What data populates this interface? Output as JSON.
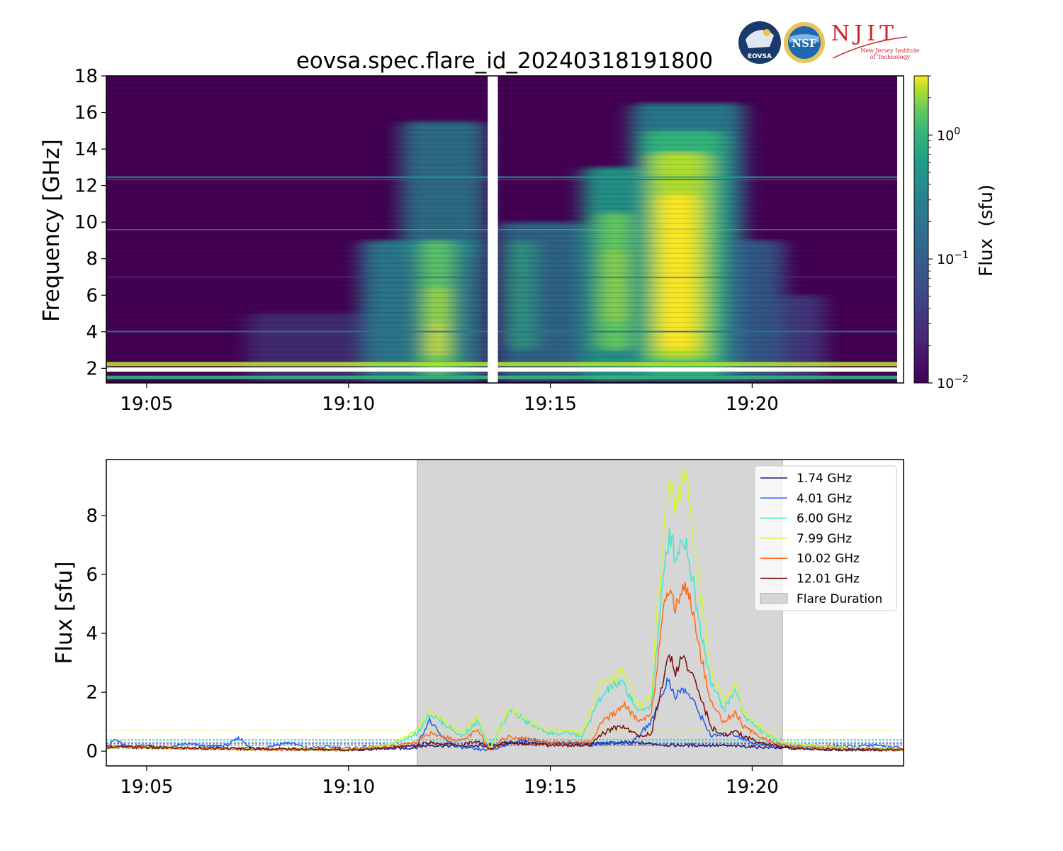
{
  "title": "eovsa.spec.flare_id_20240318191800",
  "logos": {
    "eovsa": "EOVSA",
    "nsf": "NSF",
    "njit": "NJIT",
    "njit_sub1": "New Jersey Institute",
    "njit_sub2": "of Technology"
  },
  "colors": {
    "flare_shade": "#d6d6d6",
    "viridis_low": "#440154",
    "viridis_high": "#fde725"
  },
  "chart_data": [
    {
      "type": "heatmap",
      "title": "eovsa.spec.flare_id_20240318191800",
      "ylabel": "Frequency [GHz]",
      "xlabel": "",
      "x_ticks": [
        "19:05",
        "19:10",
        "19:15",
        "19:20"
      ],
      "x_tick_minutes": [
        5,
        10,
        15,
        20
      ],
      "xlim_minutes_after_19_00": [
        4.0,
        23.75
      ],
      "y_ticks": [
        2,
        4,
        6,
        8,
        10,
        12,
        14,
        16,
        18
      ],
      "ylim": [
        1.2,
        18
      ],
      "colorbar": {
        "label": "Flux  (sfu)",
        "scale": "log",
        "range": [
          0.01,
          3.0
        ],
        "tick_values": [
          0.01,
          0.1,
          1
        ],
        "tick_labels": [
          {
            "base": "10",
            "exp": "−2"
          },
          {
            "base": "10",
            "exp": "−1"
          },
          {
            "base": "10",
            "exp": "0"
          }
        ]
      },
      "data_gap_minutes": [
        13.45,
        13.7
      ]
    },
    {
      "type": "line",
      "ylabel": "Flux [sfu]",
      "xlabel": "",
      "x_ticks": [
        "19:05",
        "19:10",
        "19:15",
        "19:20"
      ],
      "x_tick_minutes": [
        5,
        10,
        15,
        20
      ],
      "xlim_minutes_after_19_00": [
        4.0,
        23.75
      ],
      "y_ticks": [
        0,
        2,
        4,
        6,
        8
      ],
      "ylim": [
        -0.5,
        9.9
      ],
      "flare_duration_minutes": [
        11.7,
        20.75
      ],
      "legend_position": "upper right",
      "legend_shade_label": "Flare Duration",
      "series": [
        {
          "name": "1.74 GHz",
          "color": "#1b1b7a",
          "baseline": 0.25,
          "points": [
            [
              4,
              0.15
            ],
            [
              6,
              0.1
            ],
            [
              8,
              0.08
            ],
            [
              10,
              0.05
            ],
            [
              11.5,
              0.1
            ],
            [
              12,
              0.2
            ],
            [
              13,
              0.15
            ],
            [
              13.5,
              0.2
            ],
            [
              14,
              0.3
            ],
            [
              15,
              0.25
            ],
            [
              16,
              0.25
            ],
            [
              17,
              0.3
            ],
            [
              18,
              0.2
            ],
            [
              19,
              0.2
            ],
            [
              20,
              0.15
            ],
            [
              21,
              0.1
            ],
            [
              22,
              0.05
            ],
            [
              23.75,
              0.05
            ]
          ]
        },
        {
          "name": "4.01 GHz",
          "color": "#1f5be6",
          "baseline": 0.3,
          "points": [
            [
              4,
              0.1
            ],
            [
              4.2,
              0.4
            ],
            [
              4.5,
              0.15
            ],
            [
              5,
              0.2
            ],
            [
              5.5,
              0.1
            ],
            [
              6,
              0.25
            ],
            [
              6.5,
              0.15
            ],
            [
              7,
              0.2
            ],
            [
              7.3,
              0.45
            ],
            [
              7.6,
              0.1
            ],
            [
              8,
              0.15
            ],
            [
              8.5,
              0.3
            ],
            [
              9,
              0.1
            ],
            [
              9.5,
              0.15
            ],
            [
              10,
              0.1
            ],
            [
              10.5,
              0.15
            ],
            [
              11,
              0.1
            ],
            [
              11.7,
              0.2
            ],
            [
              12,
              1.05
            ],
            [
              12.3,
              0.5
            ],
            [
              12.7,
              0.15
            ],
            [
              13.2,
              0.05
            ],
            [
              13.5,
              0.05
            ],
            [
              13.7,
              0.1
            ],
            [
              14,
              0.3
            ],
            [
              14.5,
              0.4
            ],
            [
              15,
              0.25
            ],
            [
              15.5,
              0.3
            ],
            [
              16,
              0.2
            ],
            [
              16.5,
              0.3
            ],
            [
              17,
              0.25
            ],
            [
              17.5,
              1.0
            ],
            [
              17.9,
              2.4
            ],
            [
              18.1,
              1.9
            ],
            [
              18.3,
              2.1
            ],
            [
              18.5,
              1.8
            ],
            [
              18.8,
              1.0
            ],
            [
              19,
              0.5
            ],
            [
              19.5,
              0.6
            ],
            [
              20,
              0.3
            ],
            [
              20.5,
              0.15
            ],
            [
              21,
              0.2
            ],
            [
              21.5,
              0.1
            ],
            [
              22,
              0.2
            ],
            [
              22.5,
              0.15
            ],
            [
              23,
              0.2
            ],
            [
              23.75,
              0.1
            ]
          ]
        },
        {
          "name": "6.00 GHz",
          "color": "#40e8c8",
          "baseline": 0.35,
          "points": [
            [
              4,
              0.15
            ],
            [
              6,
              0.1
            ],
            [
              8,
              0.05
            ],
            [
              10,
              0.05
            ],
            [
              11,
              0.2
            ],
            [
              11.7,
              0.6
            ],
            [
              12,
              1.3
            ],
            [
              12.3,
              1.0
            ],
            [
              12.8,
              0.5
            ],
            [
              13.2,
              1.0
            ],
            [
              13.5,
              0.05
            ],
            [
              13.8,
              0.9
            ],
            [
              14,
              1.4
            ],
            [
              14.4,
              1.0
            ],
            [
              15,
              0.6
            ],
            [
              15.5,
              0.6
            ],
            [
              15.8,
              0.5
            ],
            [
              16.2,
              1.7
            ],
            [
              16.5,
              2.2
            ],
            [
              16.8,
              2.3
            ],
            [
              17.2,
              1.3
            ],
            [
              17.5,
              1.6
            ],
            [
              17.8,
              5.8
            ],
            [
              17.95,
              7.5
            ],
            [
              18.1,
              6.6
            ],
            [
              18.3,
              7.3
            ],
            [
              18.45,
              6.5
            ],
            [
              18.7,
              4.3
            ],
            [
              19,
              2.3
            ],
            [
              19.3,
              1.4
            ],
            [
              19.6,
              2.1
            ],
            [
              19.8,
              1.2
            ],
            [
              20.2,
              0.7
            ],
            [
              20.7,
              0.3
            ],
            [
              21,
              0.2
            ],
            [
              22,
              0.15
            ],
            [
              23,
              0.1
            ],
            [
              23.75,
              0.05
            ]
          ]
        },
        {
          "name": "7.99 GHz",
          "color": "#d2f53c",
          "baseline": 0.7,
          "points": [
            [
              4,
              0.15
            ],
            [
              6,
              0.1
            ],
            [
              8,
              0.1
            ],
            [
              10,
              0.05
            ],
            [
              11,
              0.2
            ],
            [
              11.7,
              0.7
            ],
            [
              12,
              1.4
            ],
            [
              12.3,
              1.1
            ],
            [
              12.8,
              0.6
            ],
            [
              13.2,
              1.2
            ],
            [
              13.5,
              0.05
            ],
            [
              13.8,
              0.9
            ],
            [
              14,
              1.5
            ],
            [
              14.4,
              1.1
            ],
            [
              15,
              0.7
            ],
            [
              15.5,
              0.7
            ],
            [
              15.8,
              0.6
            ],
            [
              16.2,
              2.2
            ],
            [
              16.5,
              2.4
            ],
            [
              16.8,
              2.7
            ],
            [
              17.2,
              1.5
            ],
            [
              17.5,
              1.9
            ],
            [
              17.8,
              7.4
            ],
            [
              17.95,
              9.4
            ],
            [
              18.1,
              8.4
            ],
            [
              18.3,
              9.3
            ],
            [
              18.45,
              8.7
            ],
            [
              18.7,
              5.5
            ],
            [
              19,
              2.7
            ],
            [
              19.3,
              1.7
            ],
            [
              19.6,
              2.3
            ],
            [
              19.8,
              1.3
            ],
            [
              20.2,
              0.8
            ],
            [
              20.7,
              0.3
            ],
            [
              21,
              0.25
            ],
            [
              22,
              0.15
            ],
            [
              23,
              0.1
            ],
            [
              23.75,
              0.05
            ]
          ]
        },
        {
          "name": "10.02 GHz",
          "color": "#ff6a14",
          "baseline": 0.4,
          "points": [
            [
              4,
              0.15
            ],
            [
              6,
              0.1
            ],
            [
              8,
              0.05
            ],
            [
              10,
              0.05
            ],
            [
              11,
              0.15
            ],
            [
              11.7,
              0.3
            ],
            [
              12,
              0.6
            ],
            [
              12.3,
              0.5
            ],
            [
              12.8,
              0.35
            ],
            [
              13.2,
              0.7
            ],
            [
              13.5,
              0.05
            ],
            [
              13.8,
              0.4
            ],
            [
              14,
              0.5
            ],
            [
              14.5,
              0.4
            ],
            [
              15,
              0.3
            ],
            [
              15.5,
              0.3
            ],
            [
              16,
              0.3
            ],
            [
              16.3,
              1.0
            ],
            [
              16.6,
              1.3
            ],
            [
              16.8,
              1.6
            ],
            [
              17.2,
              1.0
            ],
            [
              17.5,
              1.3
            ],
            [
              17.8,
              4.6
            ],
            [
              17.95,
              5.7
            ],
            [
              18.1,
              4.8
            ],
            [
              18.3,
              5.7
            ],
            [
              18.45,
              5.3
            ],
            [
              18.7,
              3.4
            ],
            [
              19,
              1.6
            ],
            [
              19.3,
              1.0
            ],
            [
              19.6,
              1.3
            ],
            [
              19.8,
              0.8
            ],
            [
              20.2,
              0.5
            ],
            [
              20.7,
              0.2
            ],
            [
              21,
              0.15
            ],
            [
              22,
              0.1
            ],
            [
              23,
              0.05
            ],
            [
              23.75,
              0.05
            ]
          ]
        },
        {
          "name": "12.01 GHz",
          "color": "#7a0f0f",
          "baseline": 0.2,
          "points": [
            [
              4,
              0.15
            ],
            [
              6,
              0.1
            ],
            [
              8,
              0.08
            ],
            [
              10,
              0.05
            ],
            [
              11,
              0.1
            ],
            [
              11.7,
              0.2
            ],
            [
              12,
              0.3
            ],
            [
              12.3,
              0.25
            ],
            [
              12.8,
              0.2
            ],
            [
              13.2,
              0.35
            ],
            [
              13.5,
              0.05
            ],
            [
              13.8,
              0.25
            ],
            [
              14,
              0.3
            ],
            [
              14.5,
              0.25
            ],
            [
              15,
              0.2
            ],
            [
              15.5,
              0.2
            ],
            [
              16,
              0.2
            ],
            [
              16.3,
              0.6
            ],
            [
              16.6,
              0.8
            ],
            [
              16.8,
              0.85
            ],
            [
              17.2,
              0.5
            ],
            [
              17.5,
              0.6
            ],
            [
              17.8,
              2.4
            ],
            [
              17.95,
              3.3
            ],
            [
              18.1,
              2.7
            ],
            [
              18.3,
              3.2
            ],
            [
              18.45,
              2.8
            ],
            [
              18.7,
              1.9
            ],
            [
              19,
              0.8
            ],
            [
              19.3,
              0.5
            ],
            [
              19.6,
              0.7
            ],
            [
              19.8,
              0.5
            ],
            [
              20.2,
              0.3
            ],
            [
              20.7,
              0.15
            ],
            [
              21,
              0.1
            ],
            [
              22,
              0.05
            ],
            [
              23,
              0.05
            ],
            [
              23.75,
              0.05
            ]
          ]
        }
      ]
    }
  ]
}
